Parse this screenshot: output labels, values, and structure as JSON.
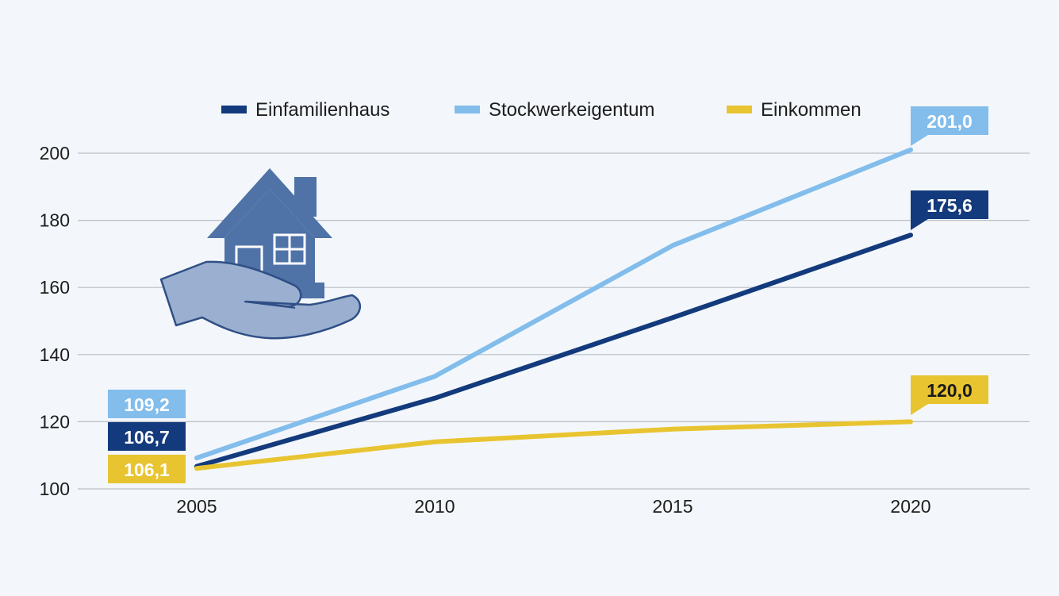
{
  "colors": {
    "background": "#f3f7fb",
    "grid": "#b9bec6",
    "axis_text": "#1d1d1d",
    "icon_fill": "#4f72a7",
    "icon_light": "#9bb0d0",
    "icon_outline": "#2f4f86"
  },
  "icon": {
    "name": "house-in-hand-icon"
  },
  "chart_data": {
    "type": "line",
    "x": [
      2005,
      2010,
      2015,
      2020
    ],
    "x_tick_labels": [
      "2005",
      "2010",
      "2015",
      "2020"
    ],
    "y_ticks": [
      100,
      120,
      140,
      160,
      180,
      200
    ],
    "y_tick_labels": [
      "100",
      "120",
      "140",
      "160",
      "180",
      "200"
    ],
    "ylim": [
      100,
      200
    ],
    "xlim": [
      2005,
      2020
    ],
    "grid": true,
    "legend_position": "top",
    "series": [
      {
        "name": "Einfamilienhaus",
        "color": "#133a7c",
        "values": [
          106.7,
          127.0,
          151.0,
          175.6
        ],
        "start_label": "106,7",
        "end_label": "175,6",
        "start_text_color": "#ffffff",
        "end_text_color": "#ffffff"
      },
      {
        "name": "Stockwerkeigentum",
        "color": "#82bdec",
        "values": [
          109.2,
          133.5,
          172.5,
          201.0
        ],
        "start_label": "109,2",
        "end_label": "201,0",
        "start_text_color": "#ffffff",
        "end_text_color": "#ffffff"
      },
      {
        "name": "Einkommen",
        "color": "#e8c431",
        "values": [
          106.1,
          114.0,
          117.8,
          120.0
        ],
        "start_label": "106,1",
        "end_label": "120,0",
        "start_text_color": "#ffffff",
        "end_text_color": "#1a1a1a"
      }
    ]
  }
}
